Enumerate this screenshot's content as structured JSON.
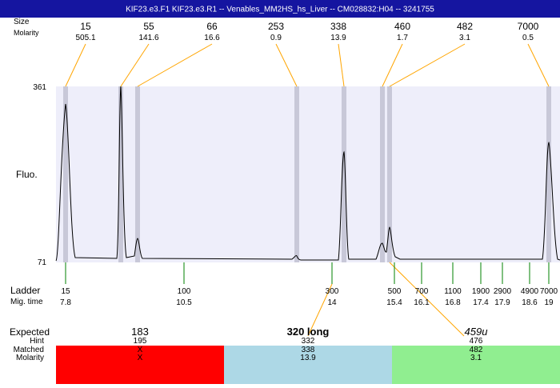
{
  "header": {
    "title": "KIF23.e3.F1  KIF23.e3.R1 -- Venables_MM2HS_hs_Liver -- CM028832:H04 -- 3241755"
  },
  "peak_labels": {
    "size": "Size",
    "molarity": "Molarity"
  },
  "peaks": [
    {
      "size": 15,
      "molarity": 505.1
    },
    {
      "size": 55,
      "molarity": 141.6
    },
    {
      "size": 66,
      "molarity": 16.6
    },
    {
      "size": 253,
      "molarity": 0.9
    },
    {
      "size": 338,
      "molarity": 13.9
    },
    {
      "size": 460,
      "molarity": 1.7
    },
    {
      "size": 482,
      "molarity": 3.1
    },
    {
      "size": 7000,
      "molarity": 0.5
    }
  ],
  "axis": {
    "top": 361,
    "bottom": 71,
    "label": "Fluo."
  },
  "ladder_labels": {
    "ladder": "Ladder",
    "mig_time": "Mig. time"
  },
  "ladder": [
    {
      "size": 15,
      "time": 7.8
    },
    {
      "size": 100,
      "time": 10.5
    },
    {
      "size": 300,
      "time": 14
    },
    {
      "size": 500,
      "time": 15.4
    },
    {
      "size": 700,
      "time": 16.1
    },
    {
      "size": 1100,
      "time": 16.8
    },
    {
      "size": 1900,
      "time": 17.4
    },
    {
      "size": 2900,
      "time": 17.9
    },
    {
      "size": 4900,
      "time": 18.6
    },
    {
      "size": 7000,
      "time": 19
    }
  ],
  "result_labels": [
    "Expected",
    "Hint",
    "Matched",
    "Molarity"
  ],
  "results": [
    {
      "expected": 183,
      "hint": 195,
      "matched": "X",
      "molarity": "X"
    },
    {
      "expected": "320 long",
      "hint": 332,
      "matched": 338,
      "molarity": 13.9
    },
    {
      "expected": "459u",
      "hint": 476,
      "matched": 482,
      "molarity": 3.1
    }
  ]
}
